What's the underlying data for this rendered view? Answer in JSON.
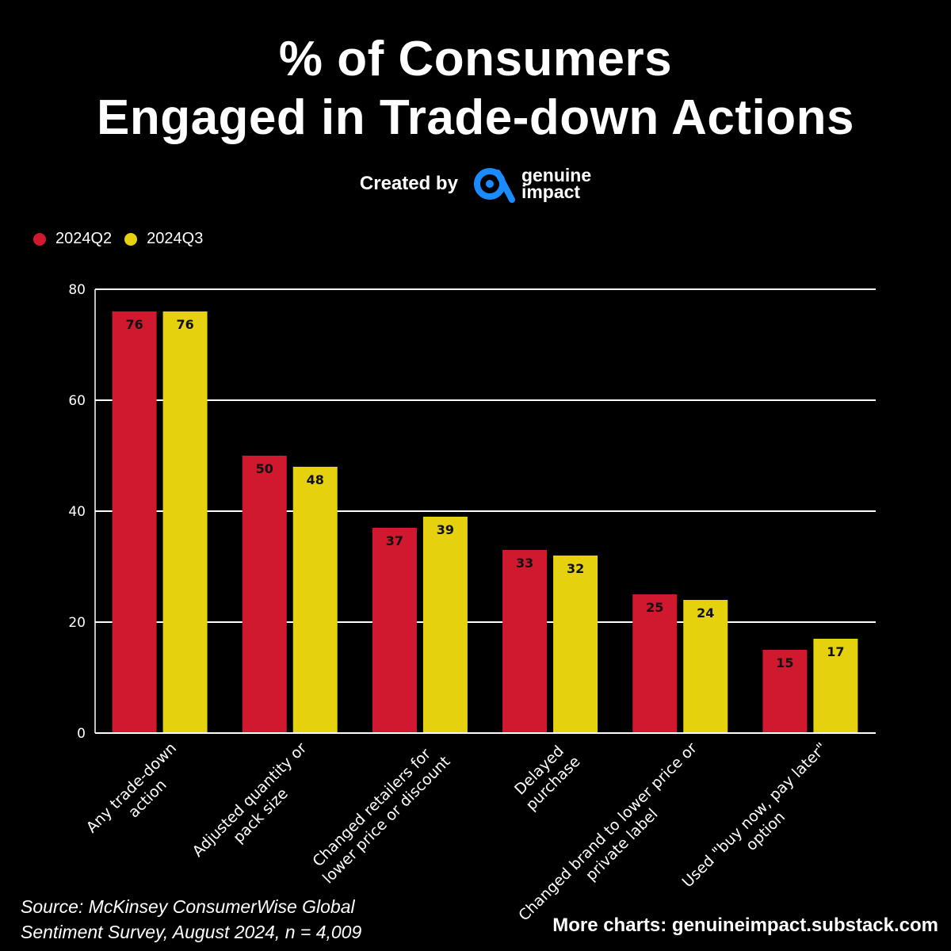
{
  "title": {
    "line1": "% of Consumers",
    "line2": "Engaged in Trade-down Actions"
  },
  "credit": {
    "label": "Created by",
    "brand_line1": "genuine",
    "brand_line2": "impact",
    "logo_icon": "genuine-impact-logo-icon",
    "logo_color": "#1a8cff"
  },
  "legend": [
    {
      "label": "2024Q2",
      "color": "#d0192e"
    },
    {
      "label": "2024Q3",
      "color": "#e6d10f"
    }
  ],
  "chart_data": {
    "type": "bar",
    "title": "% of Consumers Engaged in Trade-down Actions",
    "xlabel": "",
    "ylabel": "",
    "ylim": [
      0,
      80
    ],
    "yticks": [
      0,
      20,
      40,
      60,
      80
    ],
    "grid": true,
    "legend_position": "top-left",
    "categories": [
      [
        "Any trade-down",
        "action"
      ],
      [
        "Adjusted quantity or",
        "pack size"
      ],
      [
        "Changed retailers for",
        "lower price or discount"
      ],
      [
        "Delayed",
        "purchase"
      ],
      [
        "Changed brand to lower price or",
        "private label"
      ],
      [
        "Used \"buy now, pay later\"",
        "option"
      ]
    ],
    "series": [
      {
        "name": "2024Q2",
        "color": "#d0192e",
        "values": [
          76,
          50,
          37,
          33,
          25,
          15
        ]
      },
      {
        "name": "2024Q3",
        "color": "#e6d10f",
        "values": [
          76,
          48,
          39,
          32,
          24,
          17
        ]
      }
    ]
  },
  "footer": {
    "source_line1": "Source: McKinsey ConsumerWise Global",
    "source_line2": "Sentiment Survey, August 2024, n = 4,009",
    "more": "More charts: genuineimpact.substack.com"
  }
}
